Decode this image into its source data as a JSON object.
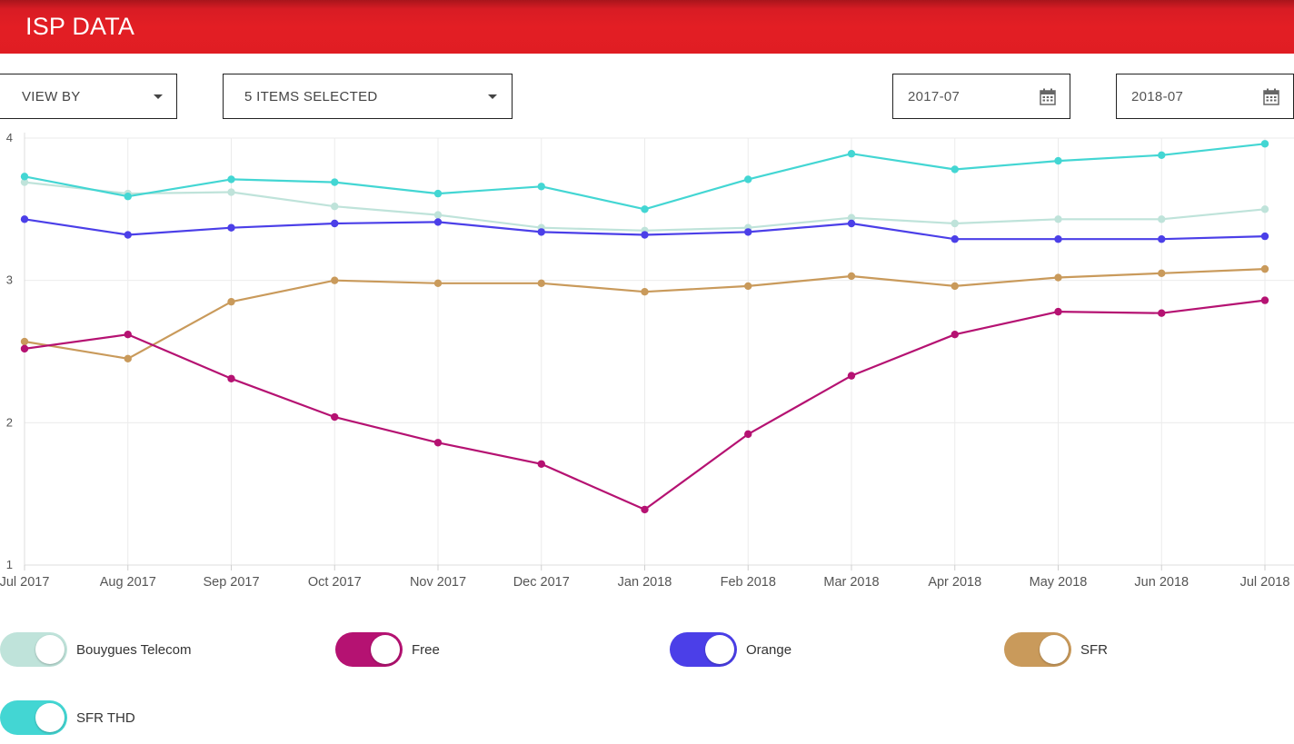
{
  "header": {
    "title": "ISP DATA"
  },
  "filters": {
    "view_by": {
      "label": "VIEW BY"
    },
    "items": {
      "label": "5 ITEMS SELECTED"
    },
    "date_start": {
      "value": "2017-07"
    },
    "date_end": {
      "value": "2018-07"
    }
  },
  "colors": {
    "header": "#e31e24",
    "grid": "#ebebeb"
  },
  "chart_data": {
    "type": "line",
    "title": "",
    "xlabel": "",
    "ylabel": "",
    "ylim": [
      1,
      4
    ],
    "yticks": [
      "1",
      "2",
      "3",
      "4"
    ],
    "categories": [
      "Jul 2017",
      "Aug 2017",
      "Sep 2017",
      "Oct 2017",
      "Nov 2017",
      "Dec 2017",
      "Jan 2018",
      "Feb 2018",
      "Mar 2018",
      "Apr 2018",
      "May 2018",
      "Jun 2018",
      "Jul 2018"
    ],
    "series": [
      {
        "name": "Bouygues Telecom",
        "color": "#bfe3da",
        "values": [
          3.69,
          3.61,
          3.62,
          3.52,
          3.46,
          3.37,
          3.35,
          3.37,
          3.44,
          3.4,
          3.43,
          3.43,
          3.5
        ]
      },
      {
        "name": "SFR THD",
        "color": "#43d6d3",
        "values": [
          3.73,
          3.59,
          3.71,
          3.69,
          3.61,
          3.66,
          3.5,
          3.71,
          3.89,
          3.78,
          3.84,
          3.88,
          3.96
        ]
      },
      {
        "name": "Orange",
        "color": "#4b3fe8",
        "values": [
          3.43,
          3.32,
          3.37,
          3.4,
          3.41,
          3.34,
          3.32,
          3.34,
          3.4,
          3.29,
          3.29,
          3.29,
          3.31
        ]
      },
      {
        "name": "SFR",
        "color": "#c99a5b",
        "values": [
          2.57,
          2.45,
          2.85,
          3.0,
          2.98,
          2.98,
          2.92,
          2.96,
          3.03,
          2.96,
          3.02,
          3.05,
          3.08
        ]
      },
      {
        "name": "Free",
        "color": "#b51272",
        "values": [
          2.52,
          2.62,
          2.31,
          2.04,
          1.86,
          1.71,
          1.39,
          1.92,
          2.33,
          2.62,
          2.78,
          2.77,
          2.86
        ]
      }
    ]
  },
  "legend": [
    {
      "label": "Bouygues Telecom",
      "color": "#bfe3da"
    },
    {
      "label": "Free",
      "color": "#b51272"
    },
    {
      "label": "Orange",
      "color": "#4b3fe8"
    },
    {
      "label": "SFR",
      "color": "#c99a5b"
    },
    {
      "label": "SFR THD",
      "color": "#43d6d3"
    }
  ]
}
